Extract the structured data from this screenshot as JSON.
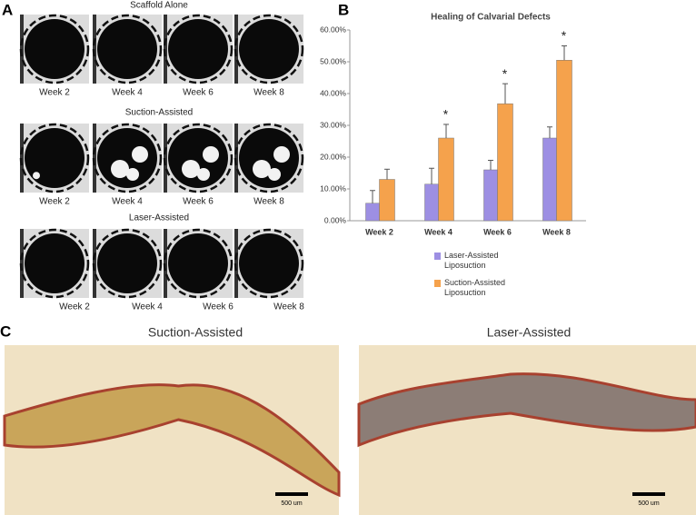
{
  "panel_labels": [
    "A",
    "B",
    "C"
  ],
  "panel_a": {
    "rows": [
      {
        "title": "Scaffold Alone",
        "weeks": [
          "Week 2",
          "Week 4",
          "Week 6",
          "Week 8"
        ]
      },
      {
        "title": "Suction-Assisted",
        "weeks": [
          "Week 2",
          "Week 4",
          "Week 6",
          "Week 8"
        ]
      },
      {
        "title": "Laser-Assisted",
        "weeks": [
          "Week 2",
          "Week 4",
          "Week 6",
          "Week 8"
        ]
      }
    ]
  },
  "chart_data": {
    "type": "bar",
    "title": "Healing of Calvarial Defects",
    "categories": [
      "Week 2",
      "Week 4",
      "Week 6",
      "Week 8"
    ],
    "series": [
      {
        "name": "Laser-Assisted Liposuction",
        "color": "#9d8fe3",
        "values": [
          5.5,
          11.5,
          16,
          26
        ],
        "errors": [
          4,
          5,
          3,
          3.5
        ]
      },
      {
        "name": "Suction-Assisted Liposuction",
        "color": "#f5a24c",
        "values": [
          13,
          26,
          36.8,
          50.5
        ],
        "errors": [
          3.2,
          4.3,
          6.3,
          4.5
        ]
      }
    ],
    "significance": [
      null,
      "*",
      "*",
      "*"
    ],
    "ylim": [
      0,
      60
    ],
    "yticks": [
      {
        "value": 0,
        "label": "0.00%"
      },
      {
        "value": 10,
        "label": "10.00%"
      },
      {
        "value": 20,
        "label": "20.00%"
      },
      {
        "value": 30,
        "label": "30.00%"
      },
      {
        "value": 40,
        "label": "40.00%"
      },
      {
        "value": 50,
        "label": "50.00%"
      },
      {
        "value": 60,
        "label": "60.00%"
      }
    ],
    "grid": false,
    "legend": "bottom"
  },
  "panel_c": {
    "images": [
      {
        "title": "Suction-Assisted",
        "scale_bar": "500 um"
      },
      {
        "title": "Laser-Assisted",
        "scale_bar": "500 um"
      }
    ]
  }
}
